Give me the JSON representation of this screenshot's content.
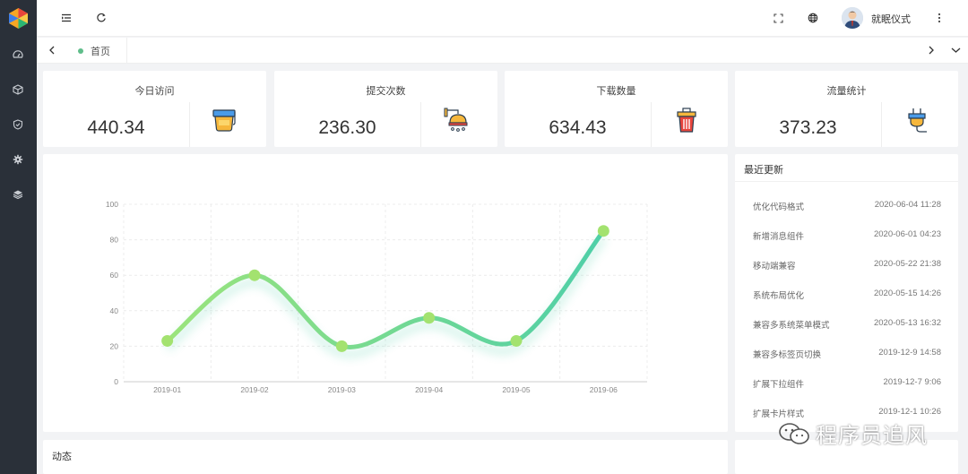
{
  "header": {
    "username": "就眠仪式"
  },
  "tabs": [
    {
      "label": "首页"
    }
  ],
  "stats": [
    {
      "title": "今日访问",
      "value": "440.34",
      "icon": "paint-bucket-icon"
    },
    {
      "title": "提交次数",
      "value": "236.30",
      "icon": "shower-icon"
    },
    {
      "title": "下载数量",
      "value": "634.43",
      "icon": "trash-can-icon"
    },
    {
      "title": "流量统计",
      "value": "373.23",
      "icon": "power-plug-icon"
    }
  ],
  "chart_data": {
    "type": "line",
    "categories": [
      "2019-01",
      "2019-02",
      "2019-03",
      "2019-04",
      "2019-05",
      "2019-06"
    ],
    "values": [
      23,
      60,
      20,
      36,
      23,
      85
    ],
    "ylim": [
      0,
      100
    ],
    "yticks": [
      "0",
      "20",
      "40",
      "60",
      "80",
      "100"
    ],
    "grid": true,
    "line_color_start": "#9be47c",
    "line_color_end": "#4ecfa8",
    "point_color": "#a3e26f"
  },
  "updates": {
    "title": "最近更新",
    "items": [
      {
        "label": "优化代码格式",
        "time": "2020-06-04 11:28"
      },
      {
        "label": "新增消息组件",
        "time": "2020-06-01 04:23"
      },
      {
        "label": "移动端兼容",
        "time": "2020-05-22 21:38"
      },
      {
        "label": "系统布局优化",
        "time": "2020-05-15 14:26"
      },
      {
        "label": "兼容多系统菜单模式",
        "time": "2020-05-13 16:32"
      },
      {
        "label": "兼容多标签页切换",
        "time": "2019-12-9 14:58"
      },
      {
        "label": "扩展下拉组件",
        "time": "2019-12-7 9:06"
      },
      {
        "label": "扩展卡片样式",
        "time": "2019-12-1 10:26"
      }
    ]
  },
  "dynamic": {
    "title": "动态"
  },
  "watermark": {
    "text": "程序员追风"
  },
  "colors": {
    "sidebar": "#2a3039",
    "accent_green": "#5fbd8a"
  }
}
